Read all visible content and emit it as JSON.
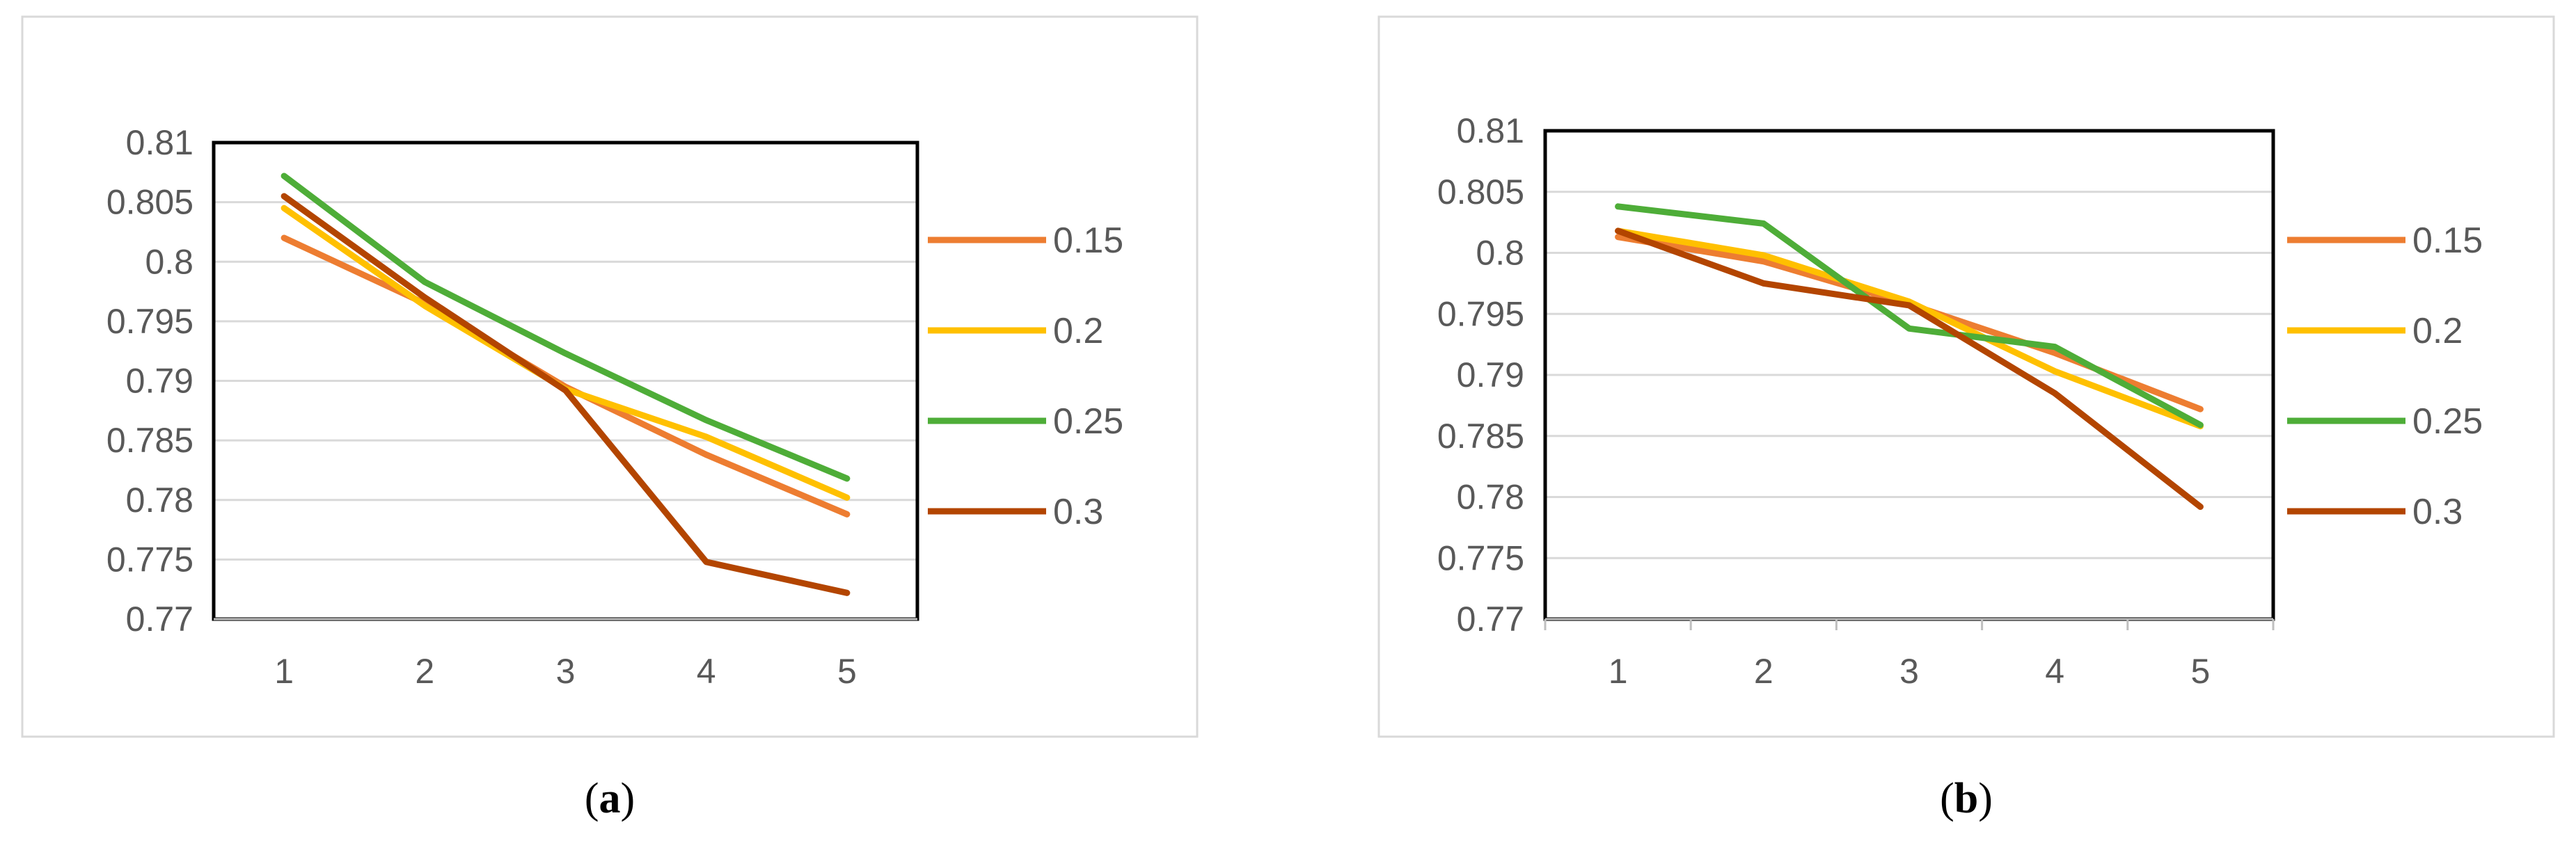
{
  "colors": {
    "0.15": "#ED7D31",
    "0.2": "#FFC000",
    "0.25": "#4EAD38",
    "0.3": "#B34500"
  },
  "chart_data": [
    {
      "panel_label": "a",
      "type": "line",
      "x": [
        "1",
        "2",
        "3",
        "4",
        "5"
      ],
      "ylim": [
        0.77,
        0.81
      ],
      "yticks": [
        "0.77",
        "0.775",
        "0.78",
        "0.785",
        "0.79",
        "0.795",
        "0.8",
        "0.805",
        "0.81"
      ],
      "grid": true,
      "legend_position": "right",
      "series": [
        {
          "name": "0.15",
          "color": "#ED7D31",
          "values": [
            0.802,
            0.7965,
            0.7895,
            0.7838,
            0.7788
          ]
        },
        {
          "name": "0.2",
          "color": "#FFC000",
          "values": [
            0.8045,
            0.7963,
            0.7893,
            0.7853,
            0.7802
          ]
        },
        {
          "name": "0.25",
          "color": "#4EAD38",
          "values": [
            0.8072,
            0.7983,
            0.7923,
            0.7867,
            0.7818
          ]
        },
        {
          "name": "0.3",
          "color": "#B34500",
          "values": [
            0.8055,
            0.797,
            0.7892,
            0.7748,
            0.7722
          ]
        }
      ]
    },
    {
      "panel_label": "b",
      "type": "line",
      "x": [
        "1",
        "2",
        "3",
        "4",
        "5"
      ],
      "ylim": [
        0.77,
        0.81
      ],
      "yticks": [
        "0.77",
        "0.775",
        "0.78",
        "0.785",
        "0.79",
        "0.795",
        "0.8",
        "0.805",
        "0.81"
      ],
      "grid": true,
      "legend_position": "right",
      "series": [
        {
          "name": "0.15",
          "color": "#ED7D31",
          "values": [
            0.8013,
            0.7993,
            0.7958,
            0.7918,
            0.7872
          ]
        },
        {
          "name": "0.2",
          "color": "#FFC000",
          "values": [
            0.8018,
            0.7998,
            0.796,
            0.7903,
            0.7858
          ]
        },
        {
          "name": "0.25",
          "color": "#4EAD38",
          "values": [
            0.8038,
            0.8024,
            0.7938,
            0.7923,
            0.7859
          ]
        },
        {
          "name": "0.3",
          "color": "#B34500",
          "values": [
            0.8018,
            0.7975,
            0.7957,
            0.7885,
            0.7792
          ]
        }
      ]
    }
  ]
}
